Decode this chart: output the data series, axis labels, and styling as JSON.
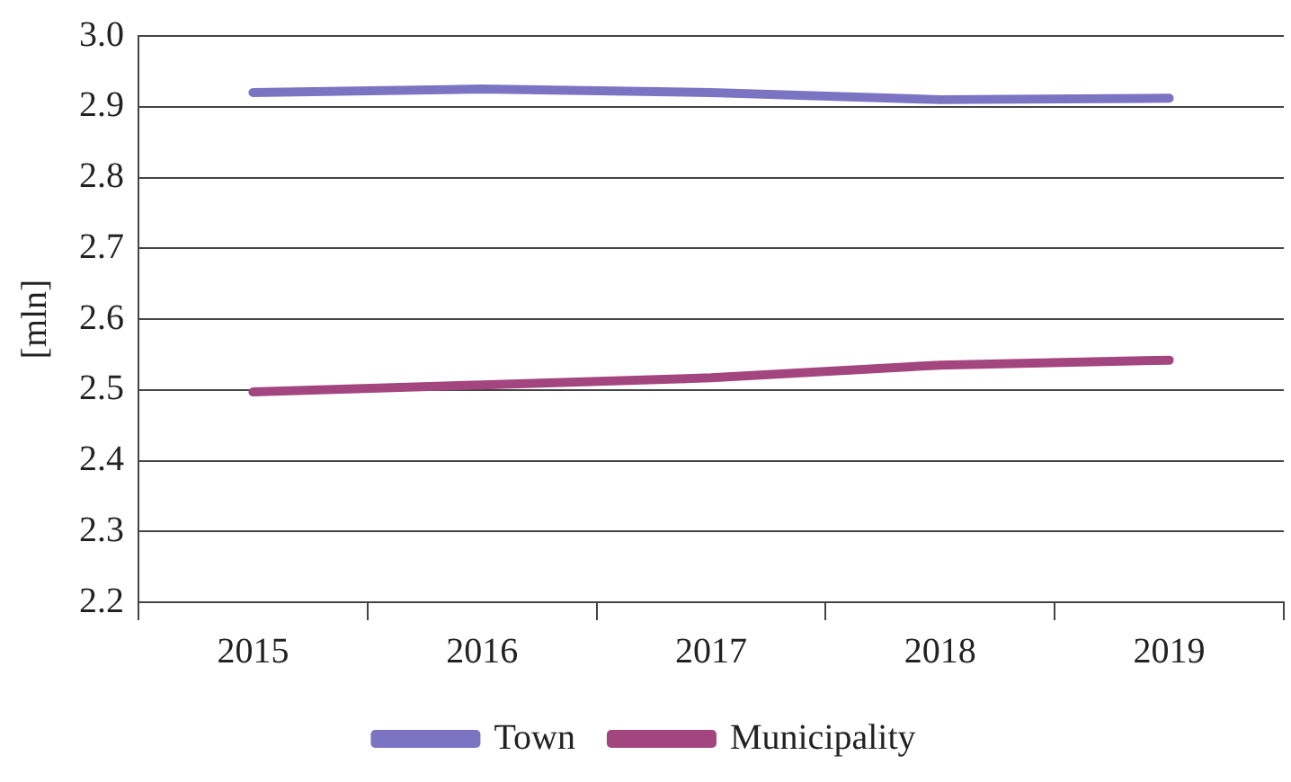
{
  "chart_data": {
    "type": "line",
    "ylabel": "[mln]",
    "categories": [
      "2015",
      "2016",
      "2017",
      "2018",
      "2019"
    ],
    "series": [
      {
        "name": "Town",
        "color": "#7b74c2",
        "values": [
          2.92,
          2.925,
          2.92,
          2.91,
          2.912
        ]
      },
      {
        "name": "Municipality",
        "color": "#a3467f",
        "values": [
          2.497,
          2.507,
          2.517,
          2.535,
          2.542
        ]
      }
    ],
    "ylim": [
      2.2,
      3.0
    ],
    "yticks": [
      {
        "value": 2.2,
        "label": "2.2"
      },
      {
        "value": 2.3,
        "label": "2.3"
      },
      {
        "value": 2.4,
        "label": "2.4"
      },
      {
        "value": 2.5,
        "label": "2.5"
      },
      {
        "value": 2.6,
        "label": "2.6"
      },
      {
        "value": 2.7,
        "label": "2.7"
      },
      {
        "value": 2.8,
        "label": "2.8"
      },
      {
        "value": 2.9,
        "label": "2.9"
      },
      {
        "value": 3.0,
        "label": "3.0"
      }
    ],
    "grid": "y",
    "legend": "bottom",
    "marker": "none",
    "line_style": "solid"
  }
}
